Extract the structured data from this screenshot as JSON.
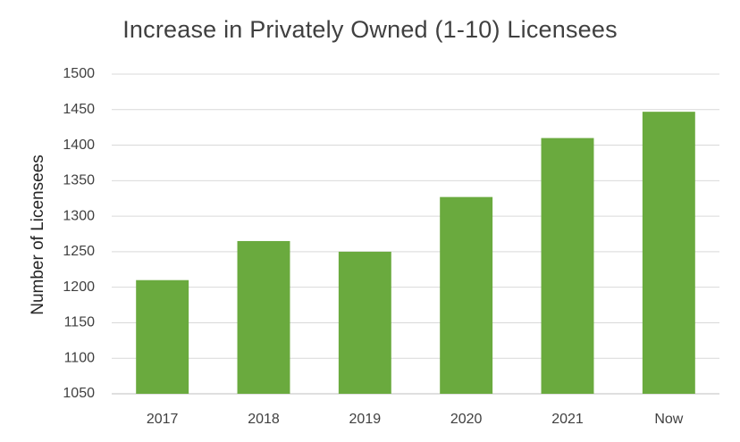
{
  "chart_data": {
    "type": "bar",
    "title": "Increase in Privately Owned (1-10) Licensees",
    "xlabel": "",
    "ylabel": "Number of Licensees",
    "categories": [
      "2017",
      "2018",
      "2019",
      "2020",
      "2021",
      "Now"
    ],
    "values": [
      1210,
      1265,
      1250,
      1327,
      1410,
      1447
    ],
    "ylim": [
      1050,
      1500
    ],
    "yticks": [
      1050,
      1100,
      1150,
      1200,
      1250,
      1300,
      1350,
      1400,
      1450,
      1500
    ],
    "grid": "horizontal",
    "legend": "none",
    "bar_color": "#6aaa3e"
  }
}
